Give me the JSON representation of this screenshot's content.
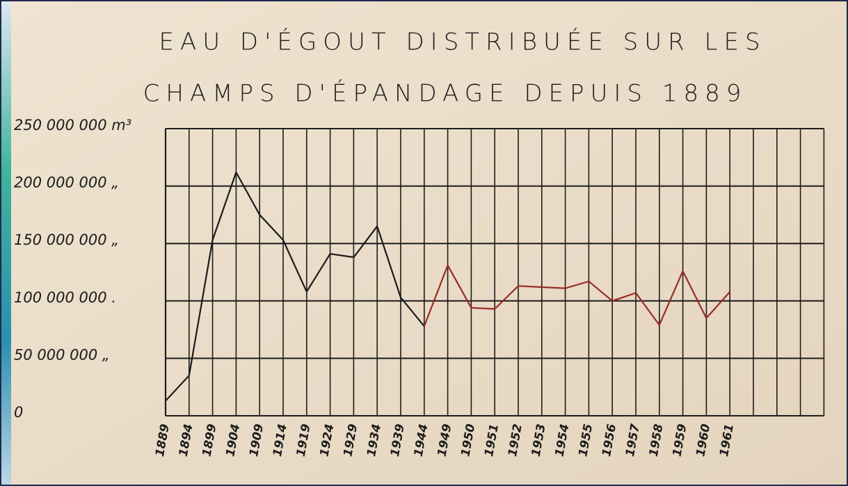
{
  "chart_data": {
    "type": "line",
    "title": [
      "EAU D'ÉGOUT DISTRIBUÉE SUR LES",
      "CHAMPS D'ÉPANDAGE DEPUIS 1889"
    ],
    "categories": [
      "1889",
      "1894",
      "1899",
      "1904",
      "1909",
      "1914",
      "1919",
      "1924",
      "1929",
      "1934",
      "1939",
      "1944",
      "1949",
      "1950",
      "1951",
      "1952",
      "1953",
      "1954",
      "1955",
      "1956",
      "1957",
      "1958",
      "1959",
      "1960",
      "1961",
      null,
      null,
      null,
      null
    ],
    "series": [
      {
        "color": "#1a1a1a",
        "values": [
          13000000,
          35000000,
          153000000,
          212000000,
          175000000,
          153000000,
          108000000,
          141000000,
          138000000,
          165000000,
          103000000,
          78000000,
          null,
          null,
          null,
          null,
          null,
          null,
          null,
          null,
          null,
          null,
          null,
          null,
          null,
          null,
          null,
          null,
          null
        ]
      },
      {
        "color": "#9a2a26",
        "values": [
          null,
          null,
          null,
          null,
          null,
          null,
          null,
          null,
          null,
          null,
          null,
          78000000,
          131000000,
          94000000,
          93000000,
          113000000,
          112000000,
          111000000,
          117000000,
          100000000,
          107000000,
          79000000,
          126000000,
          85000000,
          108000000,
          null,
          null,
          null,
          null
        ]
      }
    ],
    "ylim": [
      0,
      250000000
    ],
    "yticks": [
      {
        "value": 0,
        "label": "0"
      },
      {
        "value": 50000000,
        "label": "50 000 000 „"
      },
      {
        "value": 100000000,
        "label": "100 000 000 ."
      },
      {
        "value": 150000000,
        "label": "150 000 000 „"
      },
      {
        "value": 200000000,
        "label": "200 000 000 „"
      },
      {
        "value": 250000000,
        "label": "250 000 000 m³"
      }
    ],
    "grid": true
  }
}
